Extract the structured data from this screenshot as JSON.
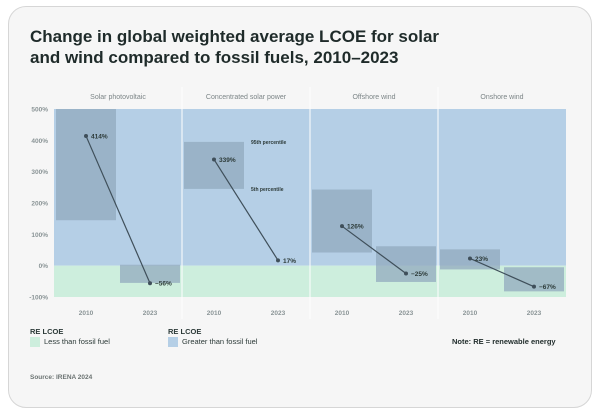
{
  "title_lines": [
    "Change in global weighted average LCOE for solar",
    "and wind compared to fossil fuels, 2010–2023"
  ],
  "legend": {
    "less": {
      "title": "RE LCOE",
      "label": "Less than fossil fuel"
    },
    "greater": {
      "title": "RE LCOE",
      "label": "Greater than fossil fuel"
    }
  },
  "note": "Note: RE = renewable energy",
  "source": "Source: IRENA 2024",
  "colors": {
    "less_bg": "#cdeedd",
    "greater_bg": "#b5cfe6",
    "band": "#91a9bd",
    "line": "#3f4f5a",
    "label": "#2c3a38",
    "axis_label": "#8a9496"
  },
  "chart_data": {
    "type": "line",
    "ylim": [
      -100,
      500
    ],
    "yticks": [
      "500%",
      "400%",
      "300%",
      "200%",
      "100%",
      "0%",
      "-100%"
    ],
    "tick_values": [
      500,
      400,
      300,
      200,
      100,
      0,
      -100
    ],
    "x": [
      "2010",
      "2023"
    ],
    "series": [
      {
        "name": "Solar photovoltaic",
        "values": [
          414,
          -56
        ],
        "labels": [
          "414%",
          "−56%"
        ],
        "range_2010": [
          145,
          500
        ],
        "range_2023": [
          -55,
          3
        ]
      },
      {
        "name": "Concentrated solar power",
        "values": [
          339,
          17
        ],
        "labels": [
          "339%",
          "17%"
        ],
        "range_2010": [
          245,
          395
        ],
        "range_2023": null,
        "annotations": [
          {
            "text": "95th percentile",
            "at": 395
          },
          {
            "text": "5th percentile",
            "at": 245
          }
        ]
      },
      {
        "name": "Offshore wind",
        "values": [
          126,
          -25
        ],
        "labels": [
          "126%",
          "−25%"
        ],
        "range_2010": [
          42,
          243
        ],
        "range_2023": [
          -52,
          62
        ]
      },
      {
        "name": "Onshore wind",
        "values": [
          23,
          -67
        ],
        "labels": [
          "23%",
          "−67%"
        ],
        "range_2010": [
          -12,
          52
        ],
        "range_2023": [
          -82,
          -5
        ]
      }
    ]
  }
}
